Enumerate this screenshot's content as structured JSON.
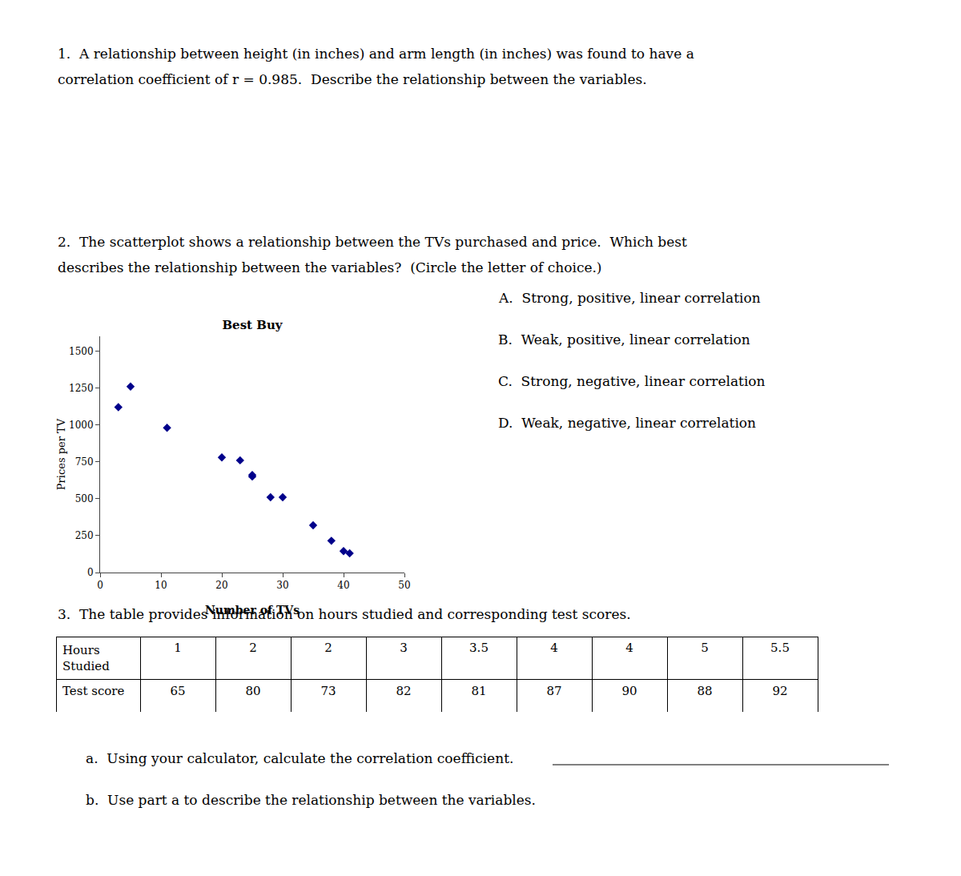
{
  "chart_data": [
    {
      "type": "scatter",
      "title": "Best Buy",
      "x_label": "Number of TVs",
      "y_label": "Prices per TV",
      "x": [
        3,
        5,
        11,
        20,
        23,
        25,
        25,
        28,
        30,
        35,
        38,
        40,
        41
      ],
      "values": [
        1120,
        1260,
        980,
        780,
        760,
        660,
        650,
        510,
        510,
        320,
        215,
        145,
        130
      ],
      "color": "#00008B",
      "marker": "diamond",
      "xlim": [
        0,
        50
      ],
      "ylim": [
        0,
        1600
      ],
      "xticks": [
        0,
        10,
        20,
        30,
        40,
        50
      ],
      "yticks": [
        0,
        250,
        500,
        750,
        1000,
        1250,
        1500
      ],
      "grid": false,
      "annotations": [
        "1.  A relationship between height (in inches) and arm length (in inches) was found to have a",
        "correlation coefficient of r = 0.985.  Describe the relationship between the variables.",
        "2.  The scatterplot shows a relationship between the TVs purchased and price.  Which best",
        "describes the relationship between the variables?  (Circle the letter of choice.)",
        "A.  Strong, positive, linear correlation",
        "B.  Weak, positive, linear correlation",
        "C.  Strong, negative, linear correlation",
        "D.  Weak, negative, linear correlation",
        "3.  The table provides information on hours studied and corresponding test scores.",
        "a.  Using your calculator, calculate the correlation coefficient.",
        "b.  Use part a to describe the relationship between the variables."
      ]
    },
    {
      "type": "table",
      "rows": [
        {
          "label": "Hours Studied",
          "values": [
            1,
            2,
            2,
            3,
            3.5,
            4,
            4,
            5,
            5.5
          ]
        },
        {
          "label": "Test score",
          "values": [
            65,
            80,
            73,
            82,
            81,
            87,
            90,
            88,
            92
          ]
        }
      ]
    }
  ]
}
